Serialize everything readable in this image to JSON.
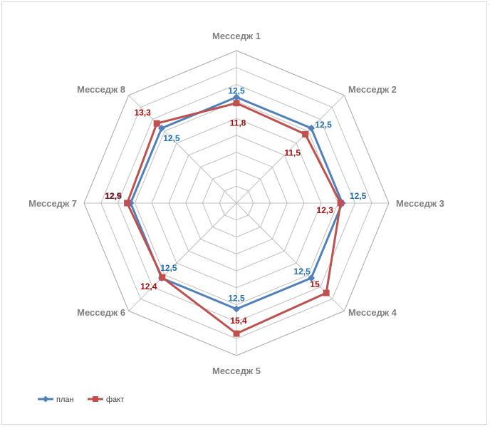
{
  "chart_data": {
    "type": "radar",
    "title": "",
    "categories": [
      "Месседж 1",
      "Месседж 2",
      "Месседж 3",
      "Месседж 4",
      "Месседж 5",
      "Месседж 6",
      "Месседж 7",
      "Месседж 8"
    ],
    "series": [
      {
        "name": "план",
        "values": [
          12.5,
          12.5,
          12.5,
          12.5,
          12.5,
          12.5,
          12.5,
          12.5
        ],
        "labels": [
          "12,5",
          "12,5",
          "12,5",
          "12,5",
          "12,5",
          "12,5",
          "12,5",
          "12,5"
        ],
        "color": "#4f81bd",
        "label_color": "#1f6fb2",
        "marker": "diamond"
      },
      {
        "name": "факт",
        "values": [
          11.8,
          11.5,
          12.3,
          15,
          15.4,
          12.4,
          12.9,
          13.3
        ],
        "labels": [
          "11,8",
          "11,5",
          "12,3",
          "15",
          "15,4",
          "12,4",
          "12,9",
          "13,3"
        ],
        "color": "#c0504d",
        "label_color": "#a50d0d",
        "marker": "square"
      }
    ],
    "rmin": 0,
    "rmax": 18,
    "grid_step": 2,
    "grid": true,
    "legend_position": "bottom-left"
  }
}
